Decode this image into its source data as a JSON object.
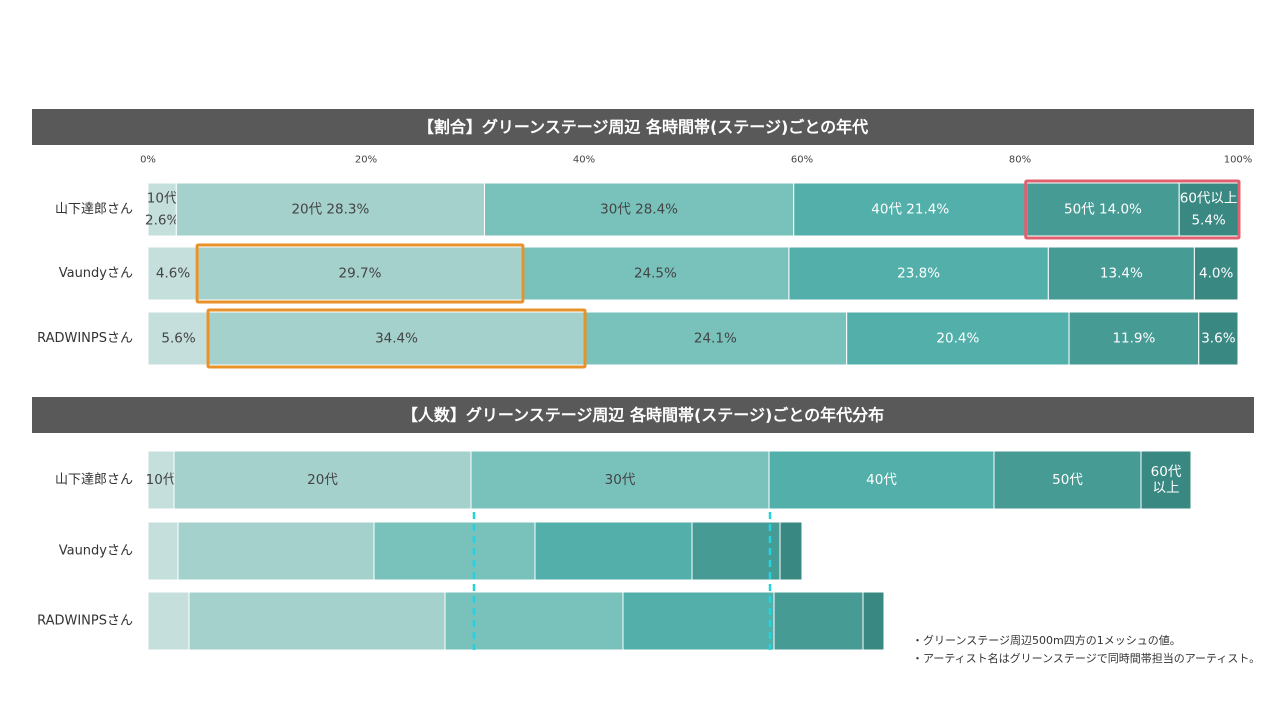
{
  "chart_data": [
    {
      "type": "bar",
      "orientation": "horizontal",
      "stacked": "percent",
      "title": "【割合】グリーンステージ周辺 各時間帯(ステージ)ごとの年代",
      "xlim": [
        0,
        100
      ],
      "ticks": [
        "0%",
        "20%",
        "40%",
        "60%",
        "80%",
        "100%"
      ],
      "categories": [
        "山下達郎さん",
        "Vaundyさん",
        "RADWINPSさん"
      ],
      "series": [
        {
          "name": "10代",
          "values": [
            2.6,
            4.6,
            5.6
          ],
          "color": "#c5dfdd"
        },
        {
          "name": "20代",
          "values": [
            28.3,
            29.7,
            34.4
          ],
          "color": "#a5d1cd"
        },
        {
          "name": "30代",
          "values": [
            28.4,
            24.5,
            24.1
          ],
          "color": "#78c2bb"
        },
        {
          "name": "40代",
          "values": [
            21.4,
            23.8,
            20.4
          ],
          "color": "#52afa9"
        },
        {
          "name": "50代",
          "values": [
            14.0,
            13.4,
            11.9
          ],
          "color": "#469b95"
        },
        {
          "name": "60代以上",
          "values": [
            5.4,
            4.0,
            3.6
          ],
          "color": "#3a8882"
        }
      ],
      "data_labels": [
        [
          "10代|2.6%",
          "20代 28.3%",
          "30代 28.4%",
          "40代 21.4%",
          "50代 14.0%",
          "60代以上|5.4%"
        ],
        [
          "4.6%",
          "29.7%",
          "24.5%",
          "23.8%",
          "13.4%",
          "4.0%"
        ],
        [
          "5.6%",
          "34.4%",
          "24.1%",
          "20.4%",
          "11.9%",
          "3.6%"
        ]
      ],
      "highlights": [
        {
          "row": 0,
          "series_from": 4,
          "series_to": 5,
          "color": "#e06070"
        },
        {
          "row": 1,
          "series_from": 1,
          "series_to": 1,
          "color": "#e8922a"
        },
        {
          "row": 2,
          "series_from": 1,
          "series_to": 1,
          "color": "#e8922a"
        }
      ]
    },
    {
      "type": "bar",
      "orientation": "horizontal",
      "stacked": "absolute",
      "title": "【人数】グリーンステージ周辺 各時間帯(ステージ)ごとの年代分布",
      "categories": [
        "山下達郎さん",
        "Vaundyさん",
        "RADWINPSさん"
      ],
      "series": [
        {
          "name": "10代",
          "values": [
            26,
            30,
            41
          ],
          "color": "#c5dfdd"
        },
        {
          "name": "20代",
          "values": [
            297,
            196,
            256
          ],
          "color": "#a5d1cd"
        },
        {
          "name": "30代",
          "values": [
            298,
            161,
            178
          ],
          "color": "#78c2bb"
        },
        {
          "name": "40代",
          "values": [
            225,
            157,
            151
          ],
          "color": "#52afa9"
        },
        {
          "name": "50代",
          "values": [
            147,
            88,
            89
          ],
          "color": "#469b95"
        },
        {
          "name": "60代以上",
          "values": [
            50,
            22,
            21
          ],
          "color": "#3a8882"
        }
      ],
      "row_labels": [
        "10代",
        "20代",
        "30代",
        "40代",
        "50代",
        "60代|以上"
      ],
      "reference_lines": [
        326,
        622
      ],
      "reference_color": "#22d3e0"
    }
  ],
  "notes": [
    "・グリーンステージ周辺500m四方の1メッシュの値。",
    "・アーティスト名はグリーンステージで同時間帯担当のアーティスト。"
  ]
}
